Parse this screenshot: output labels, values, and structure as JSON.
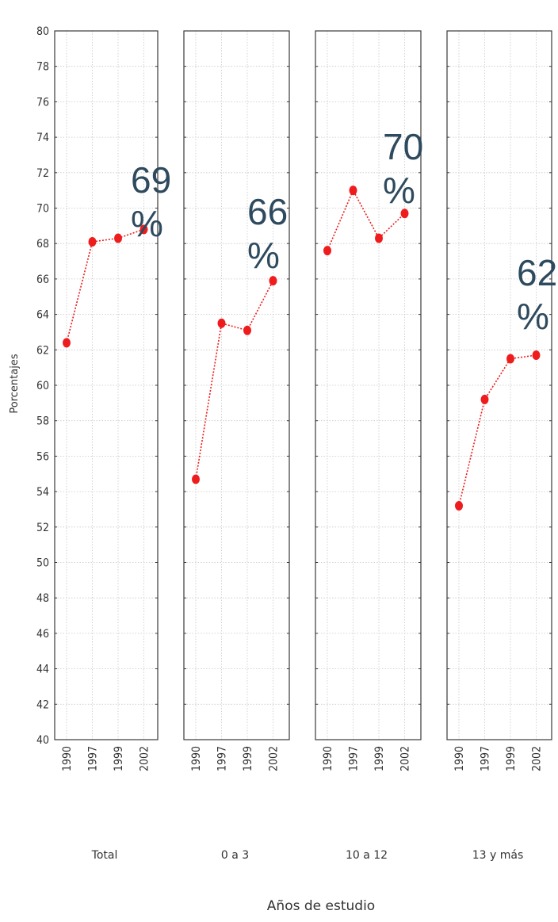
{
  "chart_data": {
    "type": "line",
    "ylabel": "Porcentajes",
    "xlabel": "Años de estudio",
    "ylim": [
      40,
      80
    ],
    "yticks": [
      40,
      42,
      44,
      46,
      48,
      50,
      52,
      54,
      56,
      58,
      60,
      62,
      64,
      66,
      68,
      70,
      72,
      74,
      76,
      78,
      80
    ],
    "x": [
      "1990",
      "1997",
      "1999",
      "2002"
    ],
    "grid": true,
    "line_color": "#ee1c1c",
    "annotation_color": "#2e4a5e",
    "panels": [
      {
        "name": "Total",
        "values": [
          62.4,
          68.1,
          68.3,
          68.8
        ],
        "annotation": [
          "69",
          "%"
        ]
      },
      {
        "name": "0 a 3",
        "values": [
          54.7,
          63.5,
          63.1,
          65.9
        ],
        "annotation": [
          "66",
          "%"
        ]
      },
      {
        "name": "10 a 12",
        "values": [
          67.6,
          71.0,
          68.3,
          69.7
        ],
        "annotation": [
          "70",
          "%"
        ]
      },
      {
        "name": "13 y más",
        "values": [
          53.2,
          59.2,
          61.5,
          61.7
        ],
        "annotation": [
          "62",
          "%"
        ]
      }
    ]
  }
}
